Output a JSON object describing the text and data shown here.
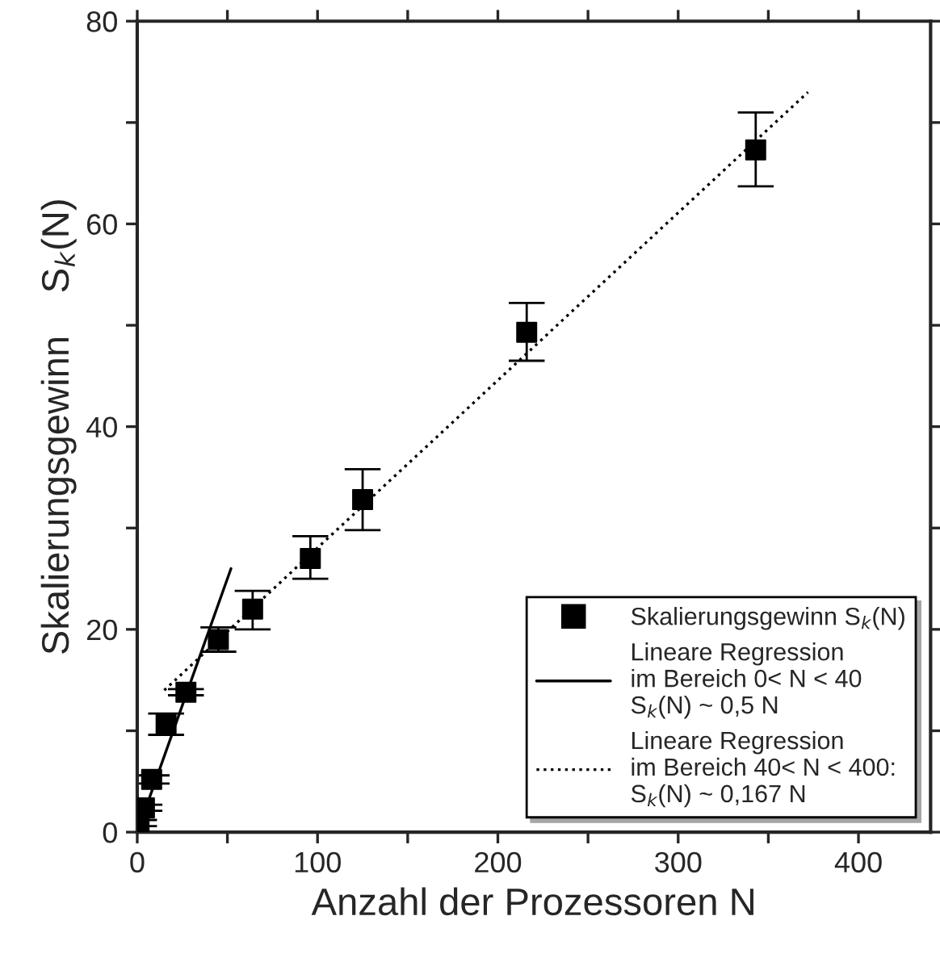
{
  "chart_data": {
    "type": "scatter",
    "xlabel": "Anzahl der Prozessoren N",
    "ylabel": "Skalierungsgewinn    S$_{k}$(N)",
    "xlim": [
      0,
      440
    ],
    "ylim": [
      0,
      80
    ],
    "xticks": [
      0,
      {
        "value": 50,
        "label": null
      },
      100,
      {
        "value": 150,
        "label": null
      },
      200,
      {
        "value": 250,
        "label": null
      },
      300,
      {
        "value": 350,
        "label": null
      },
      400
    ],
    "yticks": [
      0,
      {
        "value": 10,
        "label": null
      },
      20,
      {
        "value": 30,
        "label": null
      },
      40,
      {
        "value": 50,
        "label": null
      },
      60,
      {
        "value": 70,
        "label": null
      },
      80
    ],
    "grid": false,
    "legend": "bottom right",
    "series": [
      {
        "name": "Skalierungsgewinn S$_{k}$(N)",
        "marker": "square",
        "color": "#000000",
        "x": [
          1,
          4,
          8,
          16,
          27,
          45,
          64,
          96,
          125,
          216,
          343
        ],
        "values": [
          0.9,
          2.4,
          5.2,
          10.6,
          13.8,
          19.0,
          22.0,
          27.0,
          32.8,
          49.3,
          67.3
        ],
        "errors": [
          0.3,
          0.3,
          0.4,
          [
            9.6,
            11.7
          ],
          0.3,
          [
            17.8,
            20.2
          ],
          [
            20.0,
            23.8
          ],
          [
            25.0,
            29.2
          ],
          [
            29.8,
            35.8
          ],
          [
            46.5,
            52.2
          ],
          [
            63.7,
            71.0
          ]
        ]
      },
      {
        "name": "Lineare Regression\nim Bereich 0< N < 40\nS$_{k}$(N) ~ 0,5 N",
        "type": "line",
        "line_style": "solid",
        "color": "#000000",
        "x": [
          0,
          52
        ],
        "values": [
          0,
          26
        ]
      },
      {
        "name": "Lineare Regression\nim Bereich 40< N < 400:\nS$_{k}$(N) ~ 0,167 N",
        "type": "line",
        "line_style": "dotted",
        "color": "#000000",
        "x": [
          15,
          372
        ],
        "values": [
          14,
          73
        ]
      }
    ]
  }
}
